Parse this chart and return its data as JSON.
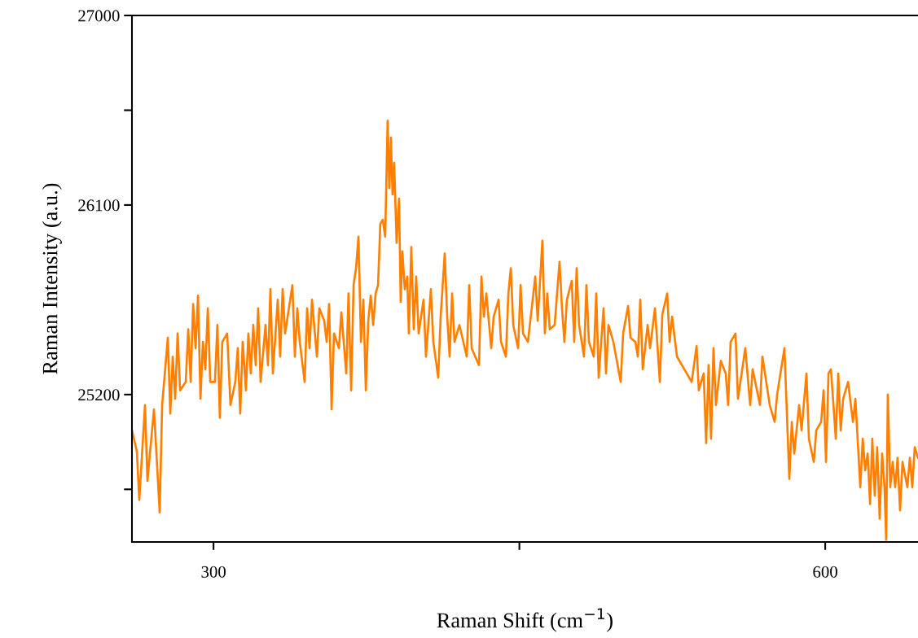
{
  "chart_data": {
    "type": "line",
    "xlabel": "Raman Shift (cm$^{−1}$)",
    "ylabel": "Raman Intensity (a.u.)",
    "xlim": [
      260,
      645.5
    ],
    "ylim": [
      24500,
      27000
    ],
    "xticks": [
      300,
      {
        "value": 450,
        "label": null
      },
      600
    ],
    "yticks": [
      {
        "value": 24750,
        "label": null
      },
      25200,
      {
        "value": 26550,
        "label": null
      },
      26100,
      27000
    ],
    "grid": false,
    "legend": false,
    "marker": "none",
    "line_style": "solid",
    "series": [
      {
        "color": "#ff8000",
        "x": [
          260.0,
          262.4,
          263.6,
          266.4,
          267.6,
          270.8,
          273.6,
          274.8,
          277.6,
          278.8,
          280.0,
          281.2,
          282.4,
          283.6,
          286.4,
          287.6,
          288.8,
          290.0,
          291.2,
          292.4,
          293.6,
          294.8,
          296.0,
          297.2,
          298.4,
          300.7,
          301.9,
          303.1,
          304.3,
          306.7,
          308.3,
          310.7,
          311.9,
          313.1,
          314.3,
          315.9,
          317.1,
          318.3,
          319.5,
          320.7,
          321.9,
          323.1,
          325.5,
          326.7,
          327.9,
          329.1,
          331.5,
          332.7,
          333.9,
          335.1,
          338.7,
          339.9,
          341.1,
          342.3,
          344.7,
          345.9,
          347.1,
          348.3,
          350.7,
          351.9,
          354.3,
          355.5,
          356.7,
          357.9,
          359.1,
          361.5,
          362.7,
          365.1,
          366.2,
          367.5,
          368.7,
          369.9,
          371.1,
          372.3,
          373.5,
          374.7,
          375.9,
          377.1,
          378.3,
          379.5,
          380.7,
          381.8,
          383.0,
          384.2,
          385.4,
          386.2,
          387.0,
          387.8,
          388.6,
          389.8,
          391.0,
          391.8,
          392.6,
          393.8,
          395.0,
          395.8,
          397.0,
          398.2,
          399.4,
          400.6,
          403.0,
          404.2,
          406.6,
          407.8,
          410.2,
          411.4,
          413.4,
          414.6,
          415.8,
          417.0,
          418.2,
          420.6,
          424.2,
          425.4,
          426.6,
          430.2,
          431.4,
          432.6,
          433.8,
          436.2,
          437.4,
          439.8,
          441.0,
          443.4,
          444.6,
          445.8,
          447.0,
          449.4,
          450.6,
          451.8,
          454.2,
          457.8,
          459.0,
          461.3,
          462.5,
          463.7,
          464.9,
          467.3,
          469.7,
          470.9,
          472.1,
          473.3,
          475.7,
          476.9,
          478.1,
          479.3,
          481.7,
          482.9,
          484.1,
          486.5,
          487.7,
          488.9,
          491.3,
          492.5,
          493.7,
          496.1,
          499.7,
          500.9,
          503.3,
          504.5,
          506.9,
          508.1,
          509.3,
          510.5,
          512.9,
          514.1,
          516.5,
          518.9,
          520.1,
          522.5,
          523.7,
          524.9,
          527.3,
          529.7,
          532.1,
          534.5,
          536.9,
          538.0,
          540.4,
          541.6,
          542.8,
          544.0,
          545.2,
          546.4,
          548.8,
          551.2,
          552.4,
          553.6,
          556.0,
          557.2,
          560.8,
          563.2,
          564.4,
          568.0,
          569.2,
          572.8,
          575.2,
          576.4,
          580.0,
          582.4,
          583.6,
          584.8,
          587.2,
          588.4,
          590.8,
          592.0,
          594.4,
          595.6,
          598.0,
          599.2,
          600.4,
          601.6,
          602.8,
          605.2,
          606.4,
          607.6,
          608.8,
          611.2,
          613.6,
          614.8,
          617.2,
          618.4,
          619.6,
          620.8,
          622.0,
          623.1,
          624.3,
          625.5,
          626.7,
          627.9,
          629.1,
          629.9,
          630.7,
          631.9,
          633.1,
          634.3,
          635.5,
          636.7,
          637.9,
          640.3,
          641.5,
          642.7,
          643.9,
          645.5
        ],
        "values": [
          25030,
          24930,
          24700,
          25150,
          24790,
          25130,
          24640,
          25150,
          25470,
          25110,
          25380,
          25180,
          25490,
          25220,
          25260,
          25510,
          25260,
          25630,
          25420,
          25670,
          25180,
          25450,
          25320,
          25610,
          25260,
          25260,
          25530,
          25090,
          25450,
          25490,
          25150,
          25260,
          25420,
          25110,
          25450,
          25220,
          25490,
          25300,
          25530,
          25340,
          25610,
          25260,
          25530,
          25340,
          25700,
          25300,
          25650,
          25380,
          25700,
          25490,
          25720,
          25380,
          25610,
          25450,
          25260,
          25610,
          25420,
          25650,
          25380,
          25610,
          25550,
          25450,
          25630,
          25130,
          25490,
          25420,
          25590,
          25300,
          25680,
          25220,
          25720,
          25800,
          25950,
          25450,
          25650,
          25220,
          25550,
          25670,
          25530,
          25680,
          25720,
          26010,
          26030,
          25950,
          26500,
          26180,
          26420,
          26150,
          26300,
          25920,
          26130,
          25640,
          25880,
          25700,
          25760,
          25490,
          25900,
          25510,
          25760,
          25490,
          25650,
          25380,
          25700,
          25450,
          25280,
          25570,
          25870,
          25570,
          25380,
          25680,
          25450,
          25530,
          25380,
          25720,
          25420,
          25340,
          25760,
          25570,
          25680,
          25420,
          25570,
          25650,
          25450,
          25380,
          25680,
          25800,
          25530,
          25420,
          25720,
          25490,
          25450,
          25760,
          25550,
          25930,
          25490,
          25680,
          25510,
          25530,
          25830,
          25610,
          25450,
          25650,
          25740,
          25450,
          25800,
          25530,
          25380,
          25720,
          25450,
          25380,
          25680,
          25280,
          25610,
          25300,
          25530,
          25450,
          25260,
          25490,
          25620,
          25470,
          25450,
          25380,
          25650,
          25320,
          25530,
          25420,
          25610,
          25260,
          25580,
          25680,
          25450,
          25570,
          25380,
          25340,
          25300,
          25260,
          25430,
          25220,
          25300,
          24970,
          25340,
          24990,
          25420,
          25150,
          25360,
          25300,
          25150,
          25450,
          25490,
          25180,
          25420,
          25150,
          25320,
          25150,
          25380,
          25150,
          25070,
          25200,
          25420,
          24800,
          25070,
          24920,
          25150,
          25030,
          25300,
          24990,
          24880,
          25030,
          25070,
          25220,
          24880,
          25300,
          25320,
          24990,
          25300,
          25030,
          25180,
          25260,
          25070,
          25180,
          24760,
          24990,
          24840,
          24920,
          24680,
          24990,
          24720,
          24950,
          24610,
          24920,
          24760,
          24510,
          25200,
          24760,
          24880,
          24760,
          24900,
          24650,
          24880,
          24760,
          24900,
          24760,
          24950,
          24900
        ]
      }
    ]
  }
}
